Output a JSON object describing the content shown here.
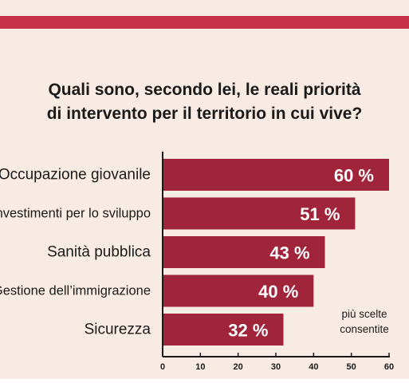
{
  "title_line1": "Quali sono, secondo lei, le reali priorità",
  "title_line2": "di intervento per il territorio in cui vive?",
  "note_line1": "più scelte",
  "note_line2": "consentite",
  "colors": {
    "bar": "#a0243a",
    "band": "#c8314a",
    "panel": "#f7ebe3"
  },
  "chart_data": {
    "type": "bar",
    "orientation": "horizontal",
    "categories": [
      "Occupazione giovanile",
      "Investimenti per lo sviluppo",
      "Sanità pubblica",
      "Gestione dell’immigrazione",
      "Sicurezza"
    ],
    "values": [
      60,
      51,
      43,
      40,
      32
    ],
    "data_labels": [
      "60 %",
      "51 %",
      "43 %",
      "40 %",
      "32 %"
    ],
    "xlim": [
      0,
      60
    ],
    "ticks": [
      0,
      10,
      20,
      30,
      40,
      50,
      60
    ],
    "title": "Quali sono, secondo lei, le reali priorità di intervento per il territorio in cui vive?",
    "annotation": "più scelte consentite"
  }
}
